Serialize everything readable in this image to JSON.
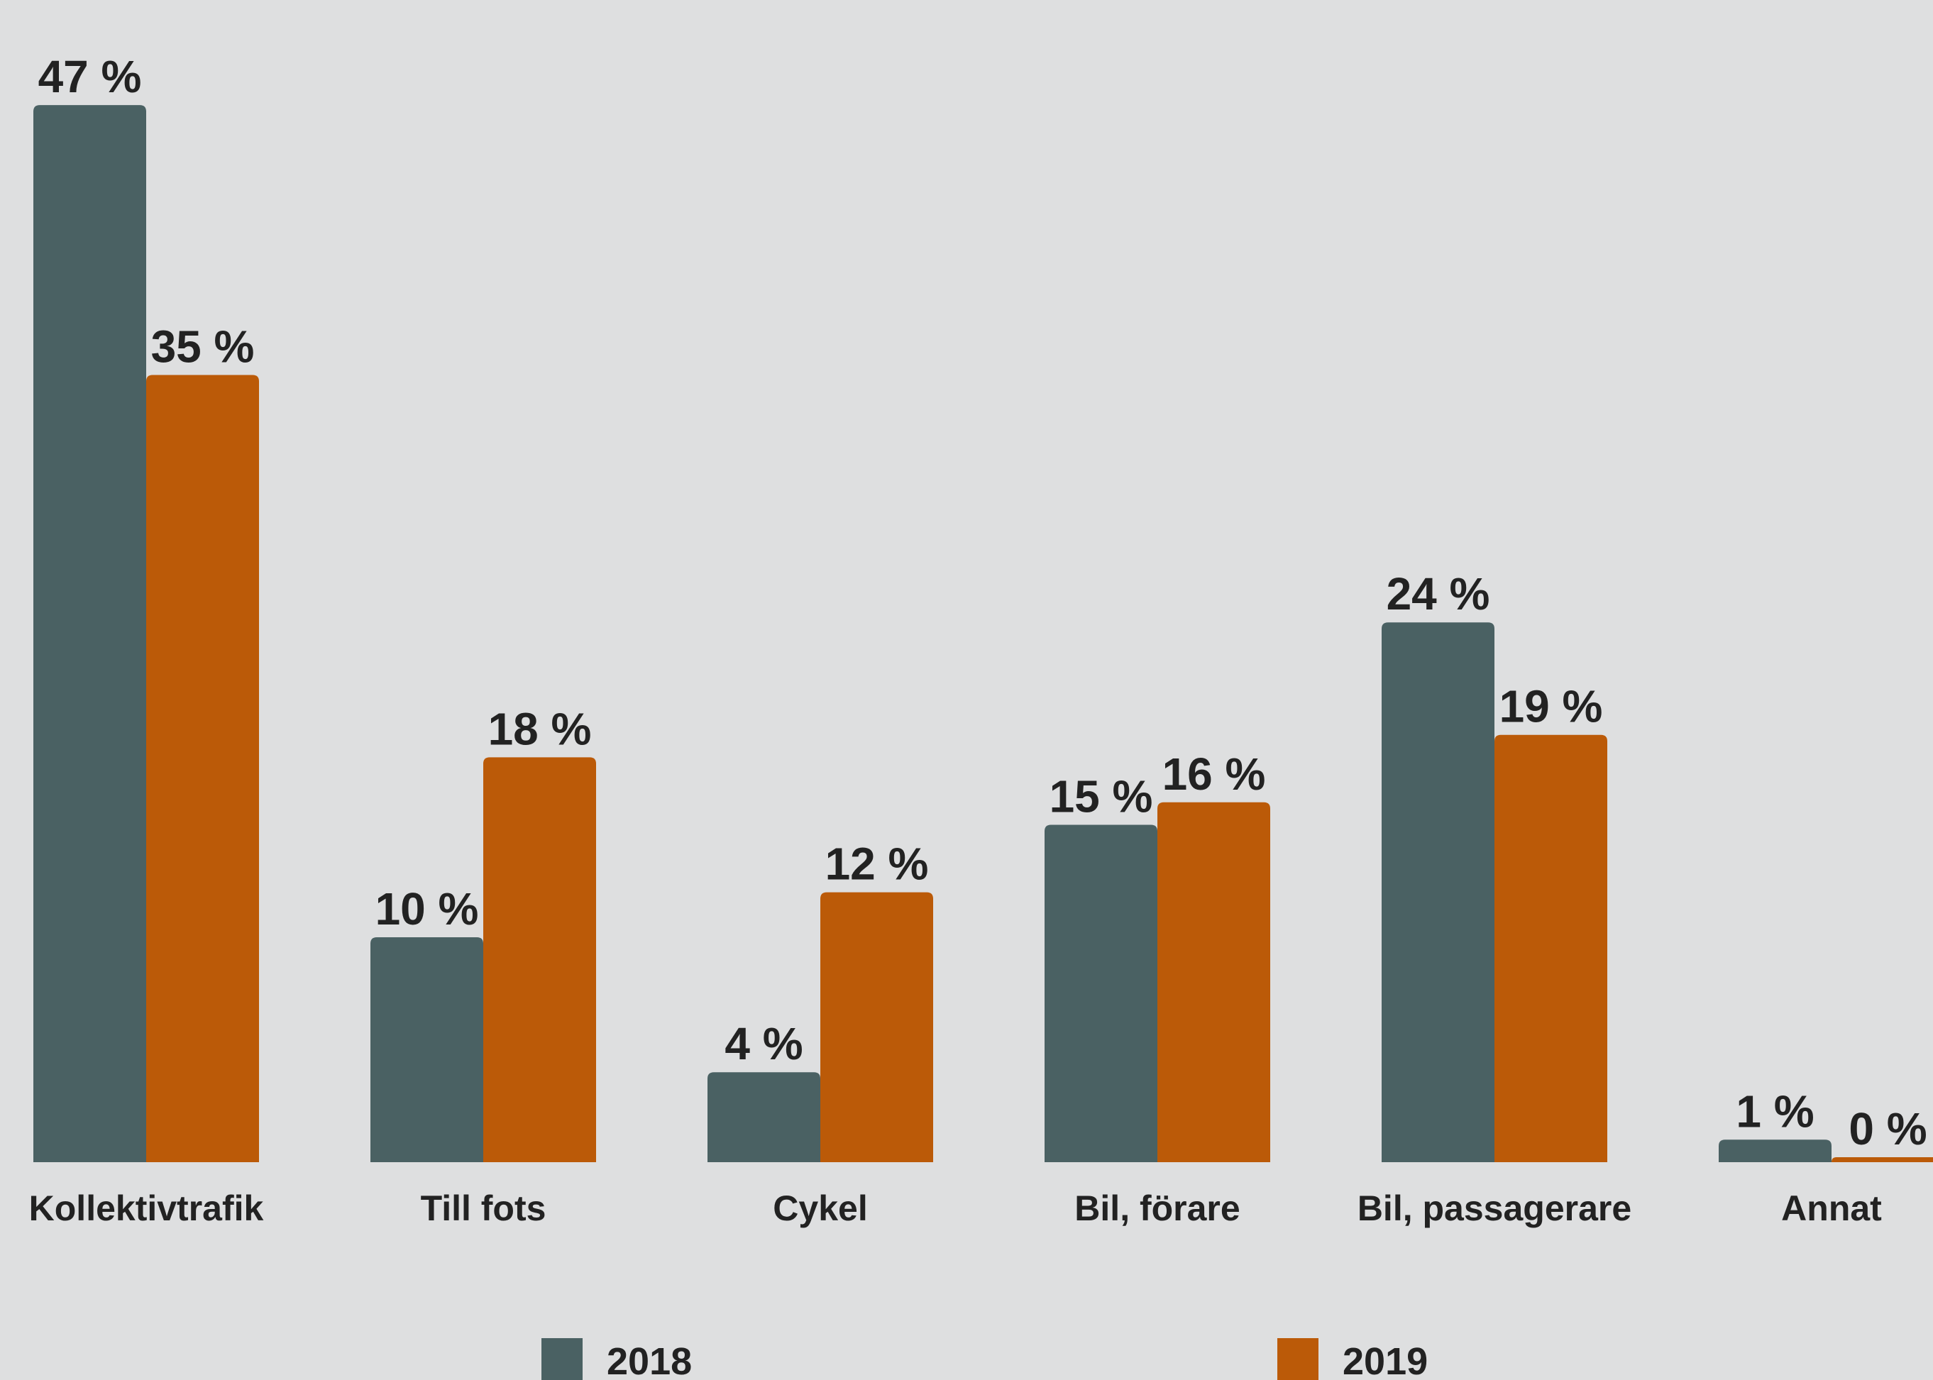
{
  "chart_data": {
    "type": "bar",
    "categories": [
      "Kollektivtrafik",
      "Till fots",
      "Cykel",
      "Bil, förare",
      "Bil, passagerare",
      "Annat"
    ],
    "series": [
      {
        "name": "2018",
        "color": "#4a6163",
        "values": [
          47,
          10,
          4,
          15,
          24,
          1
        ],
        "value_labels": [
          "47 %",
          "10 %",
          "4 %",
          "15 %",
          "24 %",
          "1 %"
        ]
      },
      {
        "name": "2019",
        "color": "#bb5a08",
        "values": [
          35,
          18,
          12,
          16,
          19,
          0
        ],
        "value_labels": [
          "35 %",
          "18 %",
          "12 %",
          "16 %",
          "19 %",
          "0 %"
        ]
      }
    ],
    "legend": "bottom"
  }
}
